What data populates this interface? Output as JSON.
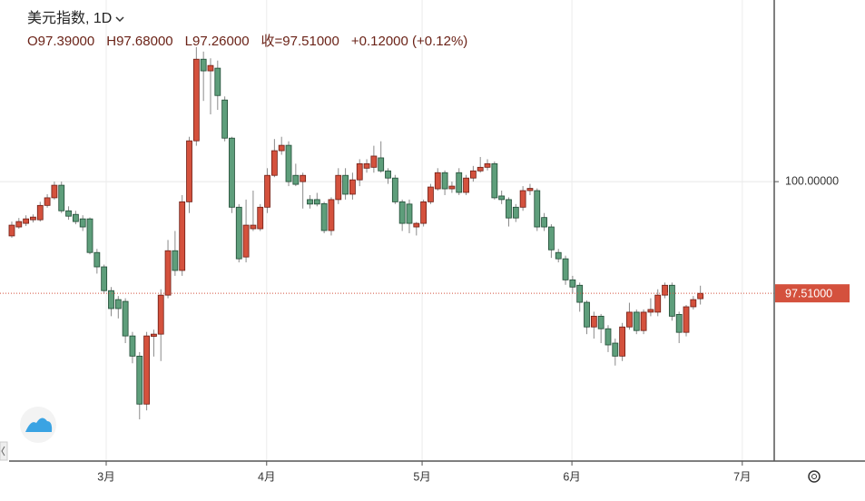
{
  "chart_data": {
    "type": "candlestick",
    "title": "美元指数, 1D",
    "ohlc_header": [
      "O97.39000",
      "H97.68000",
      "L97.26000",
      "收=97.51000",
      "+0.12000 (+0.12%)"
    ],
    "open": [
      98.79,
      98.99,
      99.07,
      99.15,
      99.15,
      99.47,
      99.64,
      99.92,
      99.35,
      99.27,
      99.17,
      99.17,
      98.42,
      98.1,
      97.57,
      97.37,
      97.33,
      96.56,
      96.11,
      95.04,
      96.55,
      96.6,
      97.47,
      98.46,
      98.02,
      99.55,
      100.91,
      102.73,
      102.47,
      102.53,
      101.82,
      100.97,
      99.43,
      98.32,
      98.95,
      98.95,
      99.43,
      100.14,
      100.69,
      100.81,
      100.14,
      100.0,
      99.6,
      99.6,
      99.51,
      98.91,
      99.6,
      100.14,
      99.72,
      100.04,
      100.3,
      100.32,
      100.53,
      100.24,
      100.08,
      99.55,
      99.5,
      98.99,
      99.07,
      99.55,
      99.84,
      100.2,
      99.84,
      100.2,
      99.76,
      100.08,
      100.24,
      100.32,
      100.4,
      99.68,
      99.6,
      99.43,
      99.43,
      99.8,
      99.8,
      99.2,
      98.99,
      98.42,
      98.28,
      97.81,
      97.69,
      97.31,
      96.76,
      97.0,
      96.72,
      96.4,
      96.11,
      96.76,
      97.09,
      96.68,
      97.09,
      97.09,
      97.47,
      97.69,
      97.04,
      96.64,
      97.21,
      97.39
    ],
    "high": [
      99.11,
      99.19,
      99.25,
      99.27,
      99.55,
      99.72,
      100.0,
      100.0,
      99.45,
      99.35,
      99.25,
      99.2,
      98.5,
      98.15,
      97.65,
      97.45,
      97.4,
      96.65,
      96.2,
      96.65,
      96.7,
      97.6,
      98.7,
      98.9,
      99.7,
      101.0,
      103.0,
      102.9,
      102.75,
      102.7,
      101.9,
      101.0,
      99.5,
      99.6,
      99.8,
      99.5,
      100.3,
      100.95,
      101.0,
      100.9,
      100.4,
      100.2,
      99.7,
      99.75,
      99.55,
      99.65,
      100.3,
      100.3,
      100.2,
      100.5,
      100.5,
      100.8,
      100.9,
      100.3,
      100.15,
      99.6,
      99.6,
      99.1,
      99.6,
      99.95,
      100.3,
      100.25,
      100.0,
      100.3,
      100.15,
      100.35,
      100.55,
      100.5,
      100.45,
      99.8,
      99.65,
      99.5,
      99.9,
      99.95,
      99.85,
      99.3,
      99.05,
      98.5,
      98.35,
      97.9,
      97.75,
      97.35,
      97.1,
      97.05,
      96.8,
      96.5,
      96.85,
      97.3,
      97.15,
      97.15,
      97.4,
      97.6,
      97.75,
      97.75,
      97.1,
      97.25,
      97.45,
      97.68
    ],
    "low": [
      98.75,
      98.95,
      99.01,
      99.09,
      99.11,
      99.42,
      99.6,
      99.3,
      99.15,
      99.05,
      98.9,
      98.38,
      97.95,
      97.5,
      97.0,
      96.95,
      96.4,
      95.95,
      94.7,
      94.9,
      96.1,
      96.0,
      97.4,
      97.9,
      97.9,
      99.3,
      100.8,
      101.8,
      101.5,
      101.6,
      100.9,
      99.3,
      98.2,
      98.2,
      98.9,
      98.9,
      99.3,
      100.1,
      100.6,
      99.9,
      99.9,
      99.4,
      99.4,
      99.45,
      98.85,
      98.8,
      99.5,
      99.6,
      99.6,
      99.9,
      100.2,
      100.2,
      100.2,
      99.95,
      99.5,
      98.9,
      98.85,
      98.8,
      99.0,
      99.5,
      99.8,
      99.7,
      99.75,
      99.7,
      99.7,
      100.0,
      100.2,
      100.25,
      99.6,
      99.5,
      99.0,
      99.1,
      99.35,
      99.7,
      98.9,
      98.9,
      98.3,
      98.2,
      97.7,
      97.5,
      97.1,
      96.6,
      96.5,
      96.4,
      96.2,
      95.9,
      96.0,
      96.7,
      96.6,
      96.6,
      97.0,
      97.0,
      97.4,
      96.9,
      96.4,
      96.55,
      97.15,
      97.26
    ],
    "close": [
      99.03,
      99.11,
      99.17,
      99.21,
      99.47,
      99.64,
      99.92,
      99.35,
      99.23,
      99.11,
      98.99,
      98.42,
      98.1,
      97.57,
      97.17,
      97.17,
      96.56,
      96.11,
      95.04,
      96.56,
      96.6,
      97.47,
      98.46,
      98.02,
      99.55,
      100.91,
      102.73,
      102.47,
      102.59,
      101.92,
      100.97,
      99.43,
      98.28,
      99.03,
      99.03,
      99.43,
      100.14,
      100.69,
      100.81,
      100.0,
      99.94,
      100.14,
      99.5,
      99.5,
      98.91,
      99.6,
      100.14,
      99.72,
      100.04,
      100.4,
      100.4,
      100.57,
      100.24,
      100.08,
      99.55,
      99.07,
      99.07,
      99.07,
      99.55,
      99.88,
      100.2,
      99.84,
      99.9,
      99.76,
      100.08,
      100.24,
      100.32,
      100.4,
      99.64,
      99.6,
      99.19,
      99.19,
      99.8,
      99.85,
      98.99,
      98.99,
      98.48,
      98.28,
      97.81,
      97.65,
      97.31,
      96.76,
      97.0,
      96.72,
      96.36,
      96.11,
      96.76,
      97.09,
      96.68,
      97.09,
      97.15,
      97.47,
      97.69,
      97.0,
      96.64,
      97.21,
      97.37,
      97.51
    ],
    "up_color": "#d4513d",
    "down_color": "#5e9e7b",
    "xlim": [
      -1.66,
      107.4
    ],
    "xticks": [
      {
        "value": 13.3,
        "label": "3月"
      },
      {
        "value": 35.9,
        "label": "4月"
      },
      {
        "value": 57.8,
        "label": "5月"
      },
      {
        "value": 78.9,
        "label": "6月"
      },
      {
        "value": 102.9,
        "label": "7月"
      }
    ],
    "ylim": [
      93.77,
      104.05
    ],
    "yticks": [
      {
        "value": 100,
        "label": "100.00000"
      }
    ],
    "last_price": {
      "value": 97.51,
      "label": "97.51000"
    },
    "grid": true
  }
}
